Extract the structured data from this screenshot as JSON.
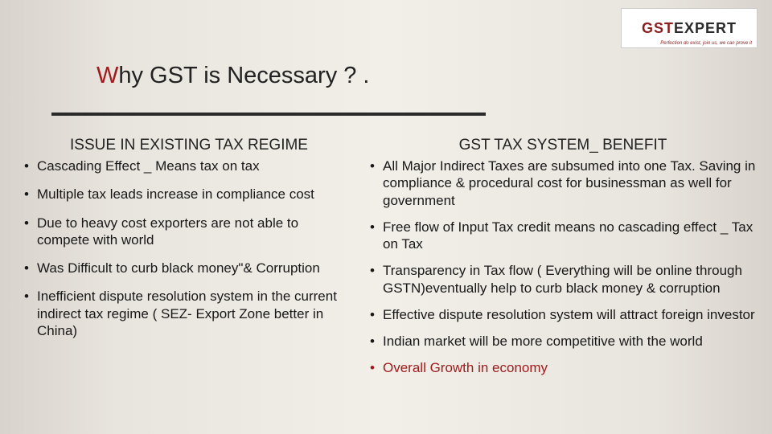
{
  "logo": {
    "brand_prefix": "GST",
    "brand_suffix": "EXPERT",
    "tagline": "Perfection do exist, join us, we can prove it"
  },
  "title": {
    "prefix": "W",
    "rest": "hy GST is Necessary ? ."
  },
  "divider_color": "#2a2a2a",
  "left": {
    "heading": "ISSUE IN EXISTING TAX REGIME",
    "items": [
      "Cascading Effect _ Means tax on tax",
      "Multiple tax leads increase in compliance cost",
      "Due to heavy cost exporters are not able to compete with world",
      "Was Difficult to curb black money\"& Corruption",
      "Inefficient dispute resolution system in the current indirect tax regime ( SEZ- Export Zone better in China)"
    ]
  },
  "right": {
    "heading": "GST TAX SYSTEM_ BENEFIT",
    "items": [
      "All Major Indirect Taxes are subsumed into one Tax. Saving in compliance & procedural cost for businessman as well for government",
      "Free flow of Input Tax credit means no cascading effect _ Tax on Tax",
      "Transparency in Tax flow ( Everything will be online through GSTN)eventually help to curb black money & corruption",
      "Effective dispute resolution system will attract foreign investor",
      "Indian market will be more competitive with the world",
      "Overall Growth in economy"
    ]
  },
  "colors": {
    "accent_red": "#a01c1c",
    "text": "#181818",
    "background_mid": "#f2efe9"
  }
}
